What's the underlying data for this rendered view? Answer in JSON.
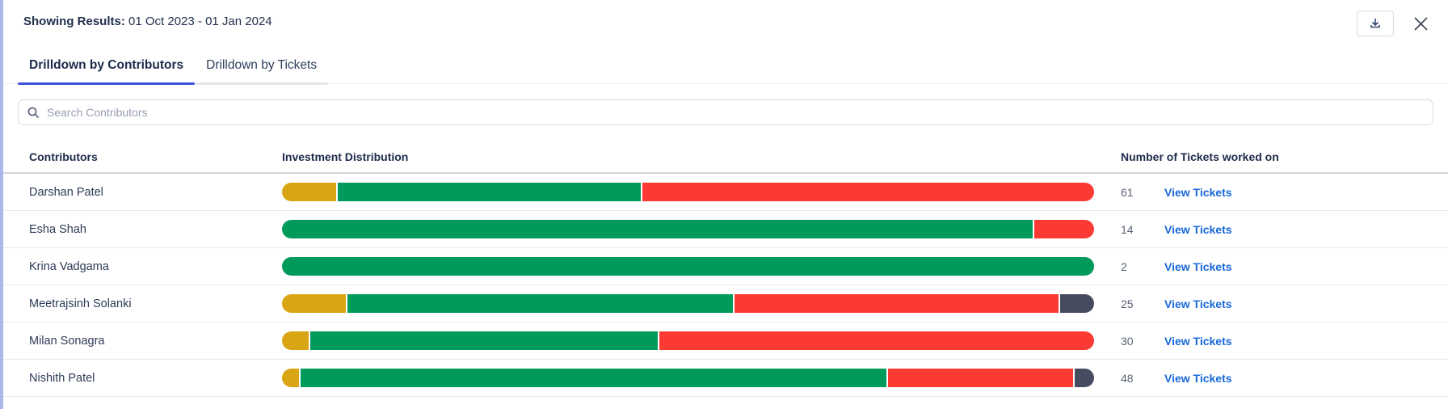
{
  "header": {
    "results_label": "Showing Results:",
    "results_value": "01 Oct 2023 - 01 Jan 2024"
  },
  "tabs": [
    {
      "label": "Drilldown by Contributors",
      "active": true
    },
    {
      "label": "Drilldown by Tickets",
      "active": false
    }
  ],
  "search": {
    "placeholder": "Search Contributors"
  },
  "table": {
    "columns": {
      "contributors": "Contributors",
      "distribution": "Investment Distribution",
      "tickets": "Number of Tickets worked on"
    },
    "view_tickets_label": "View Tickets",
    "rows": [
      {
        "name": "Darshan Patel",
        "tickets": "61",
        "segments": [
          {
            "status": "amber",
            "pct": 6.7
          },
          {
            "status": "green",
            "pct": 37.5
          },
          {
            "status": "red",
            "pct": 55.8
          }
        ]
      },
      {
        "name": "Esha Shah",
        "tickets": "14",
        "segments": [
          {
            "status": "green",
            "pct": 92.6
          },
          {
            "status": "red",
            "pct": 7.4
          }
        ]
      },
      {
        "name": "Krina Vadgama",
        "tickets": "2",
        "segments": [
          {
            "status": "green",
            "pct": 100
          }
        ]
      },
      {
        "name": "Meetrajsinh Solanki",
        "tickets": "25",
        "segments": [
          {
            "status": "amber",
            "pct": 7.9
          },
          {
            "status": "green",
            "pct": 47.8
          },
          {
            "status": "red",
            "pct": 40.1
          },
          {
            "status": "dark",
            "pct": 4.2
          }
        ]
      },
      {
        "name": "Milan Sonagra",
        "tickets": "30",
        "segments": [
          {
            "status": "amber",
            "pct": 3.3
          },
          {
            "status": "green",
            "pct": 43.0
          },
          {
            "status": "red",
            "pct": 53.7
          }
        ]
      },
      {
        "name": "Nishith Patel",
        "tickets": "48",
        "segments": [
          {
            "status": "amber",
            "pct": 2.1
          },
          {
            "status": "green",
            "pct": 72.6
          },
          {
            "status": "red",
            "pct": 22.9
          },
          {
            "status": "dark",
            "pct": 2.4
          }
        ]
      }
    ]
  },
  "colors": {
    "amber": "#D9A514",
    "green": "#009A5B",
    "red": "#FB3B33",
    "dark": "#474B60",
    "link": "#1868DB",
    "tab_active_underline": "#3B52D9",
    "left_border": "#AAB6EC"
  }
}
